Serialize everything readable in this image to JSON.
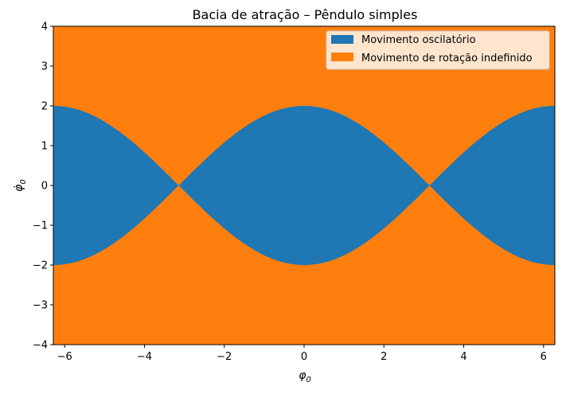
{
  "chart_data": {
    "type": "area",
    "title": "Bacia de atração – Pêndulo simples",
    "xlabel": "φ",
    "xlabel_sub": "0",
    "ylabel": "φ̇",
    "ylabel_sub": "0",
    "xlim": [
      -6.283,
      6.283
    ],
    "ylim": [
      -4,
      4
    ],
    "x_ticks": [
      -6,
      -4,
      -2,
      0,
      2,
      4,
      6
    ],
    "x_tick_labels": [
      "−6",
      "−4",
      "−2",
      "0",
      "2",
      "4",
      "6"
    ],
    "y_ticks": [
      -4,
      -3,
      -2,
      -1,
      0,
      1,
      2,
      3,
      4
    ],
    "y_tick_labels": [
      "−4",
      "−3",
      "−2",
      "−1",
      "0",
      "1",
      "2",
      "3",
      "4"
    ],
    "grid": false,
    "legend_position": "top-right",
    "separatrix": "φ̇ = ±2·|cos(φ/2)|",
    "series": [
      {
        "name": "Movimento oscilatório",
        "color": "#1f77b4",
        "region": "inside separatrix",
        "x": [
          -6.283,
          -4.712,
          -3.142,
          -1.571,
          0,
          1.571,
          3.142,
          4.712,
          6.283
        ],
        "upper": [
          2.0,
          1.414,
          0.0,
          1.414,
          2.0,
          1.414,
          0.0,
          1.414,
          2.0
        ],
        "lower": [
          -2.0,
          -1.414,
          0.0,
          -1.414,
          -2.0,
          -1.414,
          0.0,
          -1.414,
          -2.0
        ]
      },
      {
        "name": "Movimento de rotação indefinido",
        "color": "#ff7f0e",
        "region": "outside separatrix"
      }
    ]
  }
}
